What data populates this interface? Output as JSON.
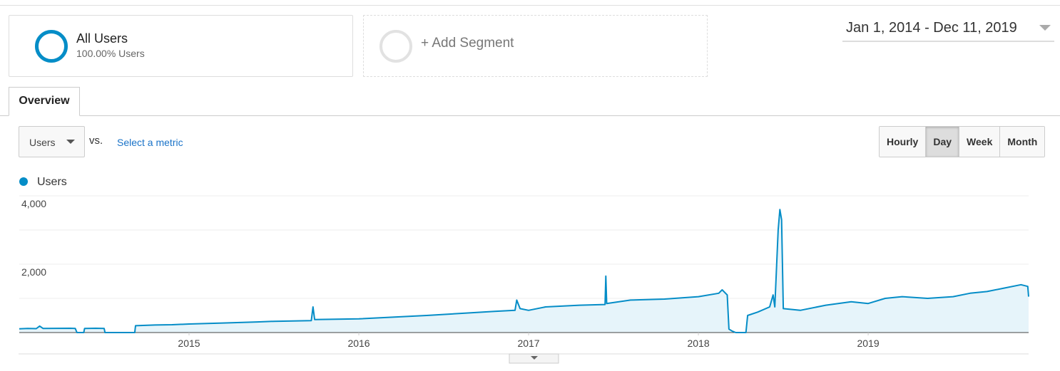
{
  "segments": [
    {
      "name": "All Users",
      "detail": "100.00% Users"
    }
  ],
  "add_segment": "+ Add Segment",
  "date_range": "Jan 1, 2014 - Dec 11, 2019",
  "tab": "Overview",
  "metric": "Users",
  "vs": "vs.",
  "select_metric": "Select a metric",
  "granularity": {
    "options": [
      "Hourly",
      "Day",
      "Week",
      "Month"
    ],
    "selected": "Day"
  },
  "chart_data": {
    "type": "line",
    "x": [
      2014.0,
      2014.05,
      2014.1,
      2014.12,
      2014.14,
      2014.3,
      2014.33,
      2014.34,
      2014.38,
      2014.385,
      2014.45,
      2014.5,
      2014.505,
      2014.68,
      2014.685,
      2014.8,
      2014.9,
      2015.0,
      2015.2,
      2015.4,
      2015.5,
      2015.72,
      2015.73,
      2015.74,
      2016.0,
      2016.2,
      2016.4,
      2016.6,
      2016.8,
      2016.92,
      2016.93,
      2016.95,
      2017.0,
      2017.1,
      2017.3,
      2017.45,
      2017.455,
      2017.46,
      2017.6,
      2017.8,
      2018.0,
      2018.12,
      2018.14,
      2018.17,
      2018.18,
      2018.2,
      2018.22,
      2018.28,
      2018.29,
      2018.35,
      2018.42,
      2018.44,
      2018.45,
      2018.47,
      2018.48,
      2018.49,
      2018.5,
      2018.6,
      2018.75,
      2018.9,
      2019.0,
      2019.1,
      2019.2,
      2019.35,
      2019.5,
      2019.6,
      2019.7,
      2019.8,
      2019.9,
      2019.94,
      2019.945
    ],
    "series": [
      {
        "name": "Users",
        "color": "#058dc7",
        "fill": "#e6f4fa",
        "values": [
          110,
          120,
          115,
          190,
          120,
          125,
          120,
          0,
          0,
          120,
          125,
          120,
          0,
          0,
          200,
          220,
          230,
          250,
          280,
          310,
          330,
          350,
          750,
          380,
          400,
          450,
          500,
          560,
          620,
          650,
          950,
          700,
          650,
          750,
          800,
          820,
          1650,
          850,
          950,
          980,
          1050,
          1150,
          1250,
          1100,
          100,
          40,
          0,
          0,
          500,
          600,
          750,
          1100,
          750,
          3000,
          3600,
          3300,
          700,
          650,
          800,
          900,
          850,
          1000,
          1050,
          1000,
          1050,
          1150,
          1200,
          1300,
          1400,
          1350,
          1050
        ]
      }
    ],
    "xlim": [
      2014,
      2019.945
    ],
    "xticks": [
      2015,
      2016,
      2017,
      2018,
      2019
    ],
    "ylim": [
      0,
      4000
    ],
    "yticks": [
      {
        "value": 2000,
        "label": "2,000"
      },
      {
        "value": 4000,
        "label": "4,000"
      }
    ],
    "minor_yticks": [
      1000,
      3000
    ],
    "grid": true
  }
}
